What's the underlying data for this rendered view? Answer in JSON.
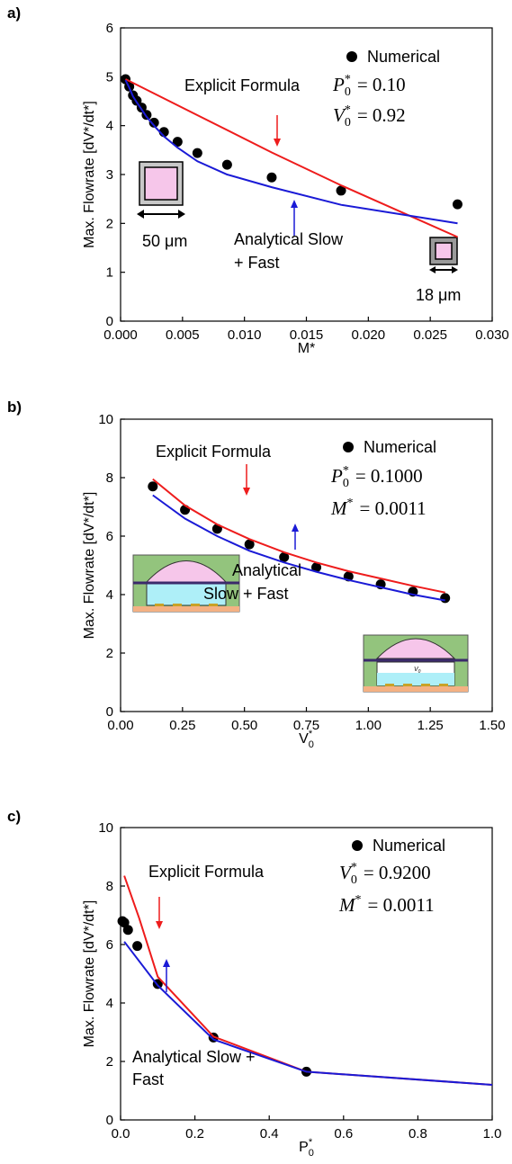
{
  "chart_data": [
    {
      "type": "line",
      "panel_label": "a)",
      "ylabel": "Max. Flowrate [dV*/dt*]",
      "xlabel": {
        "text": "M*"
      },
      "xlim": [
        0,
        0.03
      ],
      "xticks": [
        {
          "value": 0,
          "label": "0.000"
        },
        0.005,
        {
          "value": 0.01,
          "label": "0.010"
        },
        0.015,
        {
          "value": 0.02,
          "label": "0.020"
        },
        0.025,
        {
          "value": 0.03,
          "label": "0.030"
        }
      ],
      "ylim": [
        0,
        6
      ],
      "yticks": [
        0,
        1,
        2,
        3,
        4,
        5,
        6
      ],
      "series": [
        {
          "name": "Numerical",
          "style": "markers",
          "color": "#000000",
          "x": [
            0.0004,
            0.0007,
            0.001,
            0.0013,
            0.0017,
            0.0021,
            0.0027,
            0.0035,
            0.0046,
            0.0062,
            0.0086,
            0.0122,
            0.0178,
            0.0272
          ],
          "values": [
            4.95,
            4.8,
            4.62,
            4.51,
            4.37,
            4.22,
            4.06,
            3.87,
            3.67,
            3.44,
            3.2,
            2.94,
            2.67,
            2.39
          ]
        },
        {
          "name": "Explicit Formula",
          "style": "line",
          "color": "#ee1c1c",
          "x": [
            0.0004,
            0.0122,
            0.0178,
            0.0272
          ],
          "values": [
            4.95,
            3.45,
            2.78,
            1.72
          ]
        },
        {
          "label_lines": [
            "Analytical Slow",
            "+ Fast"
          ],
          "style": "line",
          "color": "#1a1ad6",
          "x": [
            0.0004,
            0.0007,
            0.001,
            0.0013,
            0.0017,
            0.0021,
            0.0027,
            0.0035,
            0.0046,
            0.0062,
            0.0086,
            0.0122,
            0.0178,
            0.0272
          ],
          "values": [
            4.93,
            4.78,
            4.6,
            4.48,
            4.33,
            4.18,
            4.0,
            3.78,
            3.55,
            3.27,
            3.0,
            2.74,
            2.38,
            2.0
          ]
        }
      ],
      "parameters": [
        {
          "symbol": "P",
          "sub": "0",
          "sup": "*",
          "value": "= 0.10"
        },
        {
          "symbol": "V",
          "sub": "0",
          "sup": "*",
          "value": "= 0.92"
        }
      ],
      "scale_labels": [
        "50 μm",
        "18 μm"
      ]
    },
    {
      "type": "line",
      "panel_label": "b)",
      "ylabel": "Max. Flowrate [dV*/dt*]",
      "xlabel": {
        "text": "V",
        "sub": "0",
        "sup": "*"
      },
      "xlim": [
        0,
        1.5
      ],
      "xticks": [
        {
          "value": 0,
          "label": "0.00"
        },
        0.25,
        {
          "value": 0.5,
          "label": "0.50"
        },
        0.75,
        {
          "value": 1,
          "label": "1.00"
        },
        1.25,
        {
          "value": 1.5,
          "label": "1.50"
        }
      ],
      "ylim": [
        0,
        10
      ],
      "yticks": [
        0,
        2,
        4,
        6,
        8,
        10
      ],
      "series": [
        {
          "name": "Numerical",
          "style": "markers",
          "color": "#000000",
          "x": [
            0.13,
            0.26,
            0.39,
            0.52,
            0.66,
            0.79,
            0.92,
            1.05,
            1.18,
            1.31
          ],
          "values": [
            7.7,
            6.9,
            6.25,
            5.72,
            5.28,
            4.93,
            4.62,
            4.35,
            4.1,
            3.88
          ]
        },
        {
          "name": "Explicit Formula",
          "style": "line",
          "color": "#ee1c1c",
          "x": [
            0.13,
            0.26,
            0.39,
            0.52,
            0.66,
            0.79,
            0.92,
            1.05,
            1.18,
            1.31
          ],
          "values": [
            7.95,
            7.05,
            6.4,
            5.9,
            5.45,
            5.1,
            4.8,
            4.55,
            4.3,
            4.07
          ]
        },
        {
          "label_lines": [
            "Analytical",
            "Slow + Fast"
          ],
          "style": "line",
          "color": "#1a1ad6",
          "x": [
            0.13,
            0.26,
            0.39,
            0.52,
            0.66,
            0.79,
            0.92,
            1.05,
            1.18,
            1.31
          ],
          "values": [
            7.4,
            6.6,
            6.0,
            5.5,
            5.1,
            4.78,
            4.5,
            4.25,
            4.0,
            3.8
          ]
        }
      ],
      "parameters": [
        {
          "symbol": "P",
          "sub": "0",
          "sup": "*",
          "value": "= 0.1000"
        },
        {
          "symbol": "M",
          "sup": "*",
          "value": "= 0.0011"
        }
      ],
      "inset_label": {
        "text": "V",
        "sub": "0"
      }
    },
    {
      "type": "line",
      "panel_label": "c)",
      "ylabel": "Max. Flowrate [dV*/dt*]",
      "xlabel": {
        "text": "P",
        "sub": "0",
        "sup": "*"
      },
      "xlim": [
        0,
        1
      ],
      "xticks": [
        {
          "value": 0,
          "label": "0.0"
        },
        0.2,
        0.4,
        0.6,
        0.8,
        {
          "value": 1,
          "label": "1.0"
        }
      ],
      "ylim": [
        0,
        10
      ],
      "yticks": [
        0,
        2,
        4,
        6,
        8,
        10
      ],
      "series": [
        {
          "name": "Numerical",
          "style": "markers",
          "color": "#000000",
          "x": [
            0.005,
            0.01,
            0.02,
            0.045,
            0.1,
            0.25,
            0.5
          ],
          "values": [
            6.8,
            6.75,
            6.5,
            5.95,
            4.65,
            2.82,
            1.65
          ]
        },
        {
          "name": "Explicit Formula",
          "style": "line",
          "color": "#ee1c1c",
          "x": [
            0.01,
            0.05,
            0.1,
            0.25,
            0.5,
            1
          ],
          "values": [
            8.35,
            6.9,
            4.9,
            2.85,
            1.65,
            1.2
          ]
        },
        {
          "label_lines": [
            "Analytical Slow +",
            "Fast"
          ],
          "style": "line",
          "color": "#1a1ad6",
          "x": [
            0.01,
            0.1,
            0.25,
            0.5,
            1
          ],
          "values": [
            6.1,
            4.6,
            2.75,
            1.65,
            1.2
          ]
        }
      ],
      "parameters": [
        {
          "symbol": "V",
          "sub": "0",
          "sup": "*",
          "value": "= 0.9200"
        },
        {
          "symbol": "M",
          "sup": "*",
          "value": "= 0.0011"
        }
      ]
    }
  ]
}
